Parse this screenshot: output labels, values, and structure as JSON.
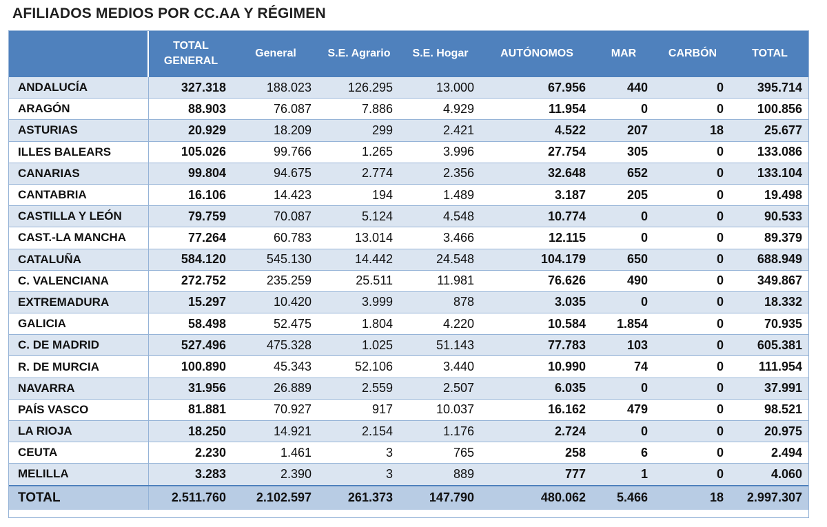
{
  "title": "AFILIADOS MEDIOS POR CC.AA Y RÉGIMEN",
  "headers": [
    "",
    "TOTAL GENERAL",
    "General",
    "S.E. Agrario",
    "S.E. Hogar",
    "AUTÓNOMOS",
    "MAR",
    "CARBÓN",
    "TOTAL"
  ],
  "rows": [
    [
      "ANDALUCÍA",
      "327.318",
      "188.023",
      "126.295",
      "13.000",
      "67.956",
      "440",
      "0",
      "395.714"
    ],
    [
      "ARAGÓN",
      "88.903",
      "76.087",
      "7.886",
      "4.929",
      "11.954",
      "0",
      "0",
      "100.856"
    ],
    [
      "ASTURIAS",
      "20.929",
      "18.209",
      "299",
      "2.421",
      "4.522",
      "207",
      "18",
      "25.677"
    ],
    [
      "ILLES BALEARS",
      "105.026",
      "99.766",
      "1.265",
      "3.996",
      "27.754",
      "305",
      "0",
      "133.086"
    ],
    [
      "CANARIAS",
      "99.804",
      "94.675",
      "2.774",
      "2.356",
      "32.648",
      "652",
      "0",
      "133.104"
    ],
    [
      "CANTABRIA",
      "16.106",
      "14.423",
      "194",
      "1.489",
      "3.187",
      "205",
      "0",
      "19.498"
    ],
    [
      "CASTILLA Y LEÓN",
      "79.759",
      "70.087",
      "5.124",
      "4.548",
      "10.774",
      "0",
      "0",
      "90.533"
    ],
    [
      "CAST.-LA MANCHA",
      "77.264",
      "60.783",
      "13.014",
      "3.466",
      "12.115",
      "0",
      "0",
      "89.379"
    ],
    [
      "CATALUÑA",
      "584.120",
      "545.130",
      "14.442",
      "24.548",
      "104.179",
      "650",
      "0",
      "688.949"
    ],
    [
      "C. VALENCIANA",
      "272.752",
      "235.259",
      "25.511",
      "11.981",
      "76.626",
      "490",
      "0",
      "349.867"
    ],
    [
      "EXTREMADURA",
      "15.297",
      "10.420",
      "3.999",
      "878",
      "3.035",
      "0",
      "0",
      "18.332"
    ],
    [
      "GALICIA",
      "58.498",
      "52.475",
      "1.804",
      "4.220",
      "10.584",
      "1.854",
      "0",
      "70.935"
    ],
    [
      "C. DE MADRID",
      "527.496",
      "475.328",
      "1.025",
      "51.143",
      "77.783",
      "103",
      "0",
      "605.381"
    ],
    [
      "R. DE MURCIA",
      "100.890",
      "45.343",
      "52.106",
      "3.440",
      "10.990",
      "74",
      "0",
      "111.954"
    ],
    [
      "NAVARRA",
      "31.956",
      "26.889",
      "2.559",
      "2.507",
      "6.035",
      "0",
      "0",
      "37.991"
    ],
    [
      "PAÍS VASCO",
      "81.881",
      "70.927",
      "917",
      "10.037",
      "16.162",
      "479",
      "0",
      "98.521"
    ],
    [
      "LA RIOJA",
      "18.250",
      "14.921",
      "2.154",
      "1.176",
      "2.724",
      "0",
      "0",
      "20.975"
    ],
    [
      "CEUTA",
      "2.230",
      "1.461",
      "3",
      "765",
      "258",
      "6",
      "0",
      "2.494"
    ],
    [
      "MELILLA",
      "3.283",
      "2.390",
      "3",
      "889",
      "777",
      "1",
      "0",
      "4.060"
    ]
  ],
  "total_row": [
    "TOTAL",
    "2.511.760",
    "2.102.597",
    "261.373",
    "147.790",
    "480.062",
    "5.466",
    "18",
    "2.997.307"
  ],
  "colors": {
    "header_bg": "#4f81bd",
    "band": "#dbe5f1",
    "total_bg": "#b8cce4"
  }
}
